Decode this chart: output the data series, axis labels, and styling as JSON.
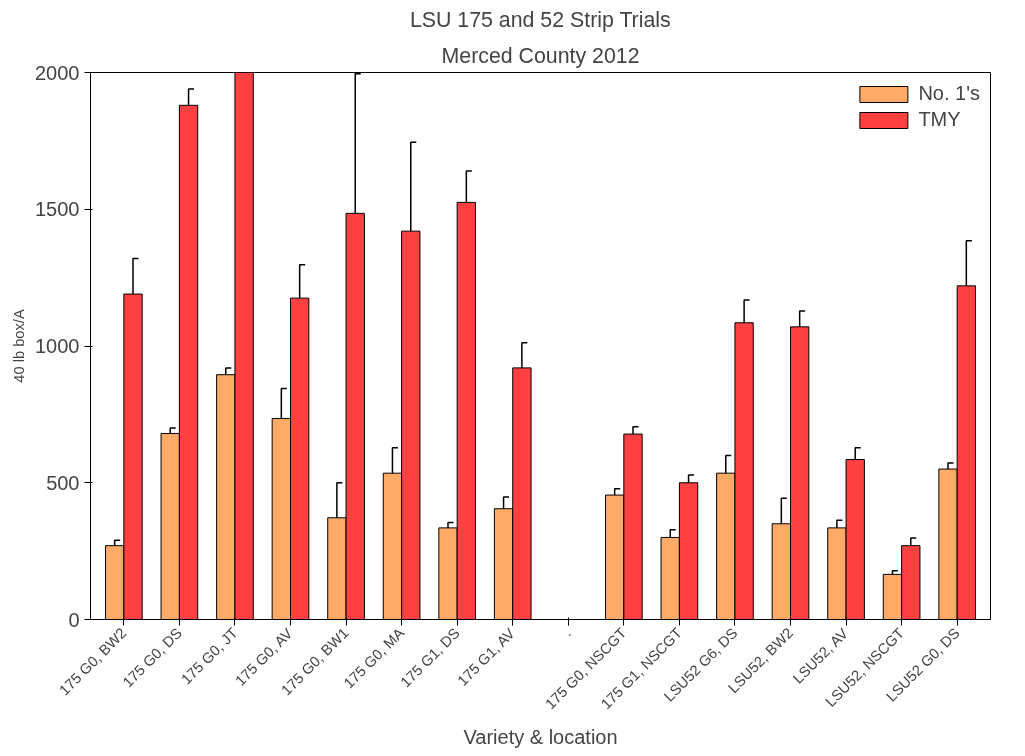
{
  "chart_data": {
    "type": "bar",
    "title": "LSU 175 and 52 Strip Trials",
    "subtitle": "Merced County 2012",
    "xlabel": "Variety & location",
    "ylabel": "40 lb box/A",
    "categories": [
      "175 G0, BW2",
      "175 G0, DS",
      "175 G0, JT",
      "175 G0, AV",
      "175 G0, BW1",
      "175 G0, MA",
      "175 G1, DS",
      "175 G1, AV",
      ".",
      "175 G0, NSCGT",
      "175 G1, NSCGT",
      "LSU52 G6, DS",
      "LSU52, BW2",
      "LSU52, AV",
      "LSU52, NSCGT",
      "LSU52 G0, DS"
    ],
    "series": [
      {
        "name": "No. 1's",
        "color": "#ffaa66",
        "values": [
          270,
          680,
          895,
          735,
          372,
          535,
          335,
          405,
          null,
          455,
          300,
          535,
          350,
          335,
          165,
          550
        ],
        "errors": [
          [
            270,
            290
          ],
          [
            680,
            700
          ],
          [
            895,
            920
          ],
          [
            735,
            845
          ],
          [
            372,
            500
          ],
          [
            535,
            628
          ],
          [
            335,
            355
          ],
          [
            405,
            448
          ],
          null,
          [
            455,
            478
          ],
          [
            300,
            328
          ],
          [
            535,
            600
          ],
          [
            350,
            443
          ],
          [
            335,
            363
          ],
          [
            165,
            178
          ],
          [
            550,
            572
          ]
        ]
      },
      {
        "name": "TMY",
        "color": "#ff4040",
        "values": [
          1190,
          1880,
          2000,
          1175,
          1485,
          1420,
          1525,
          920,
          null,
          678,
          500,
          1085,
          1070,
          585,
          270,
          1220
        ],
        "errors": [
          [
            1190,
            1320
          ],
          [
            1880,
            1940
          ],
          null,
          [
            1175,
            1297
          ],
          [
            1485,
            1995
          ],
          [
            1420,
            1745
          ],
          [
            1525,
            1640
          ],
          [
            920,
            1012
          ],
          null,
          [
            678,
            705
          ],
          [
            500,
            528
          ],
          [
            1085,
            1168
          ],
          [
            1070,
            1128
          ],
          [
            585,
            628
          ],
          [
            270,
            298
          ],
          [
            1220,
            1385
          ]
        ]
      }
    ],
    "ylim": [
      0,
      2000
    ],
    "yticks": [
      0,
      500,
      1000,
      1500,
      2000
    ],
    "grid": false,
    "legend": "top right"
  }
}
